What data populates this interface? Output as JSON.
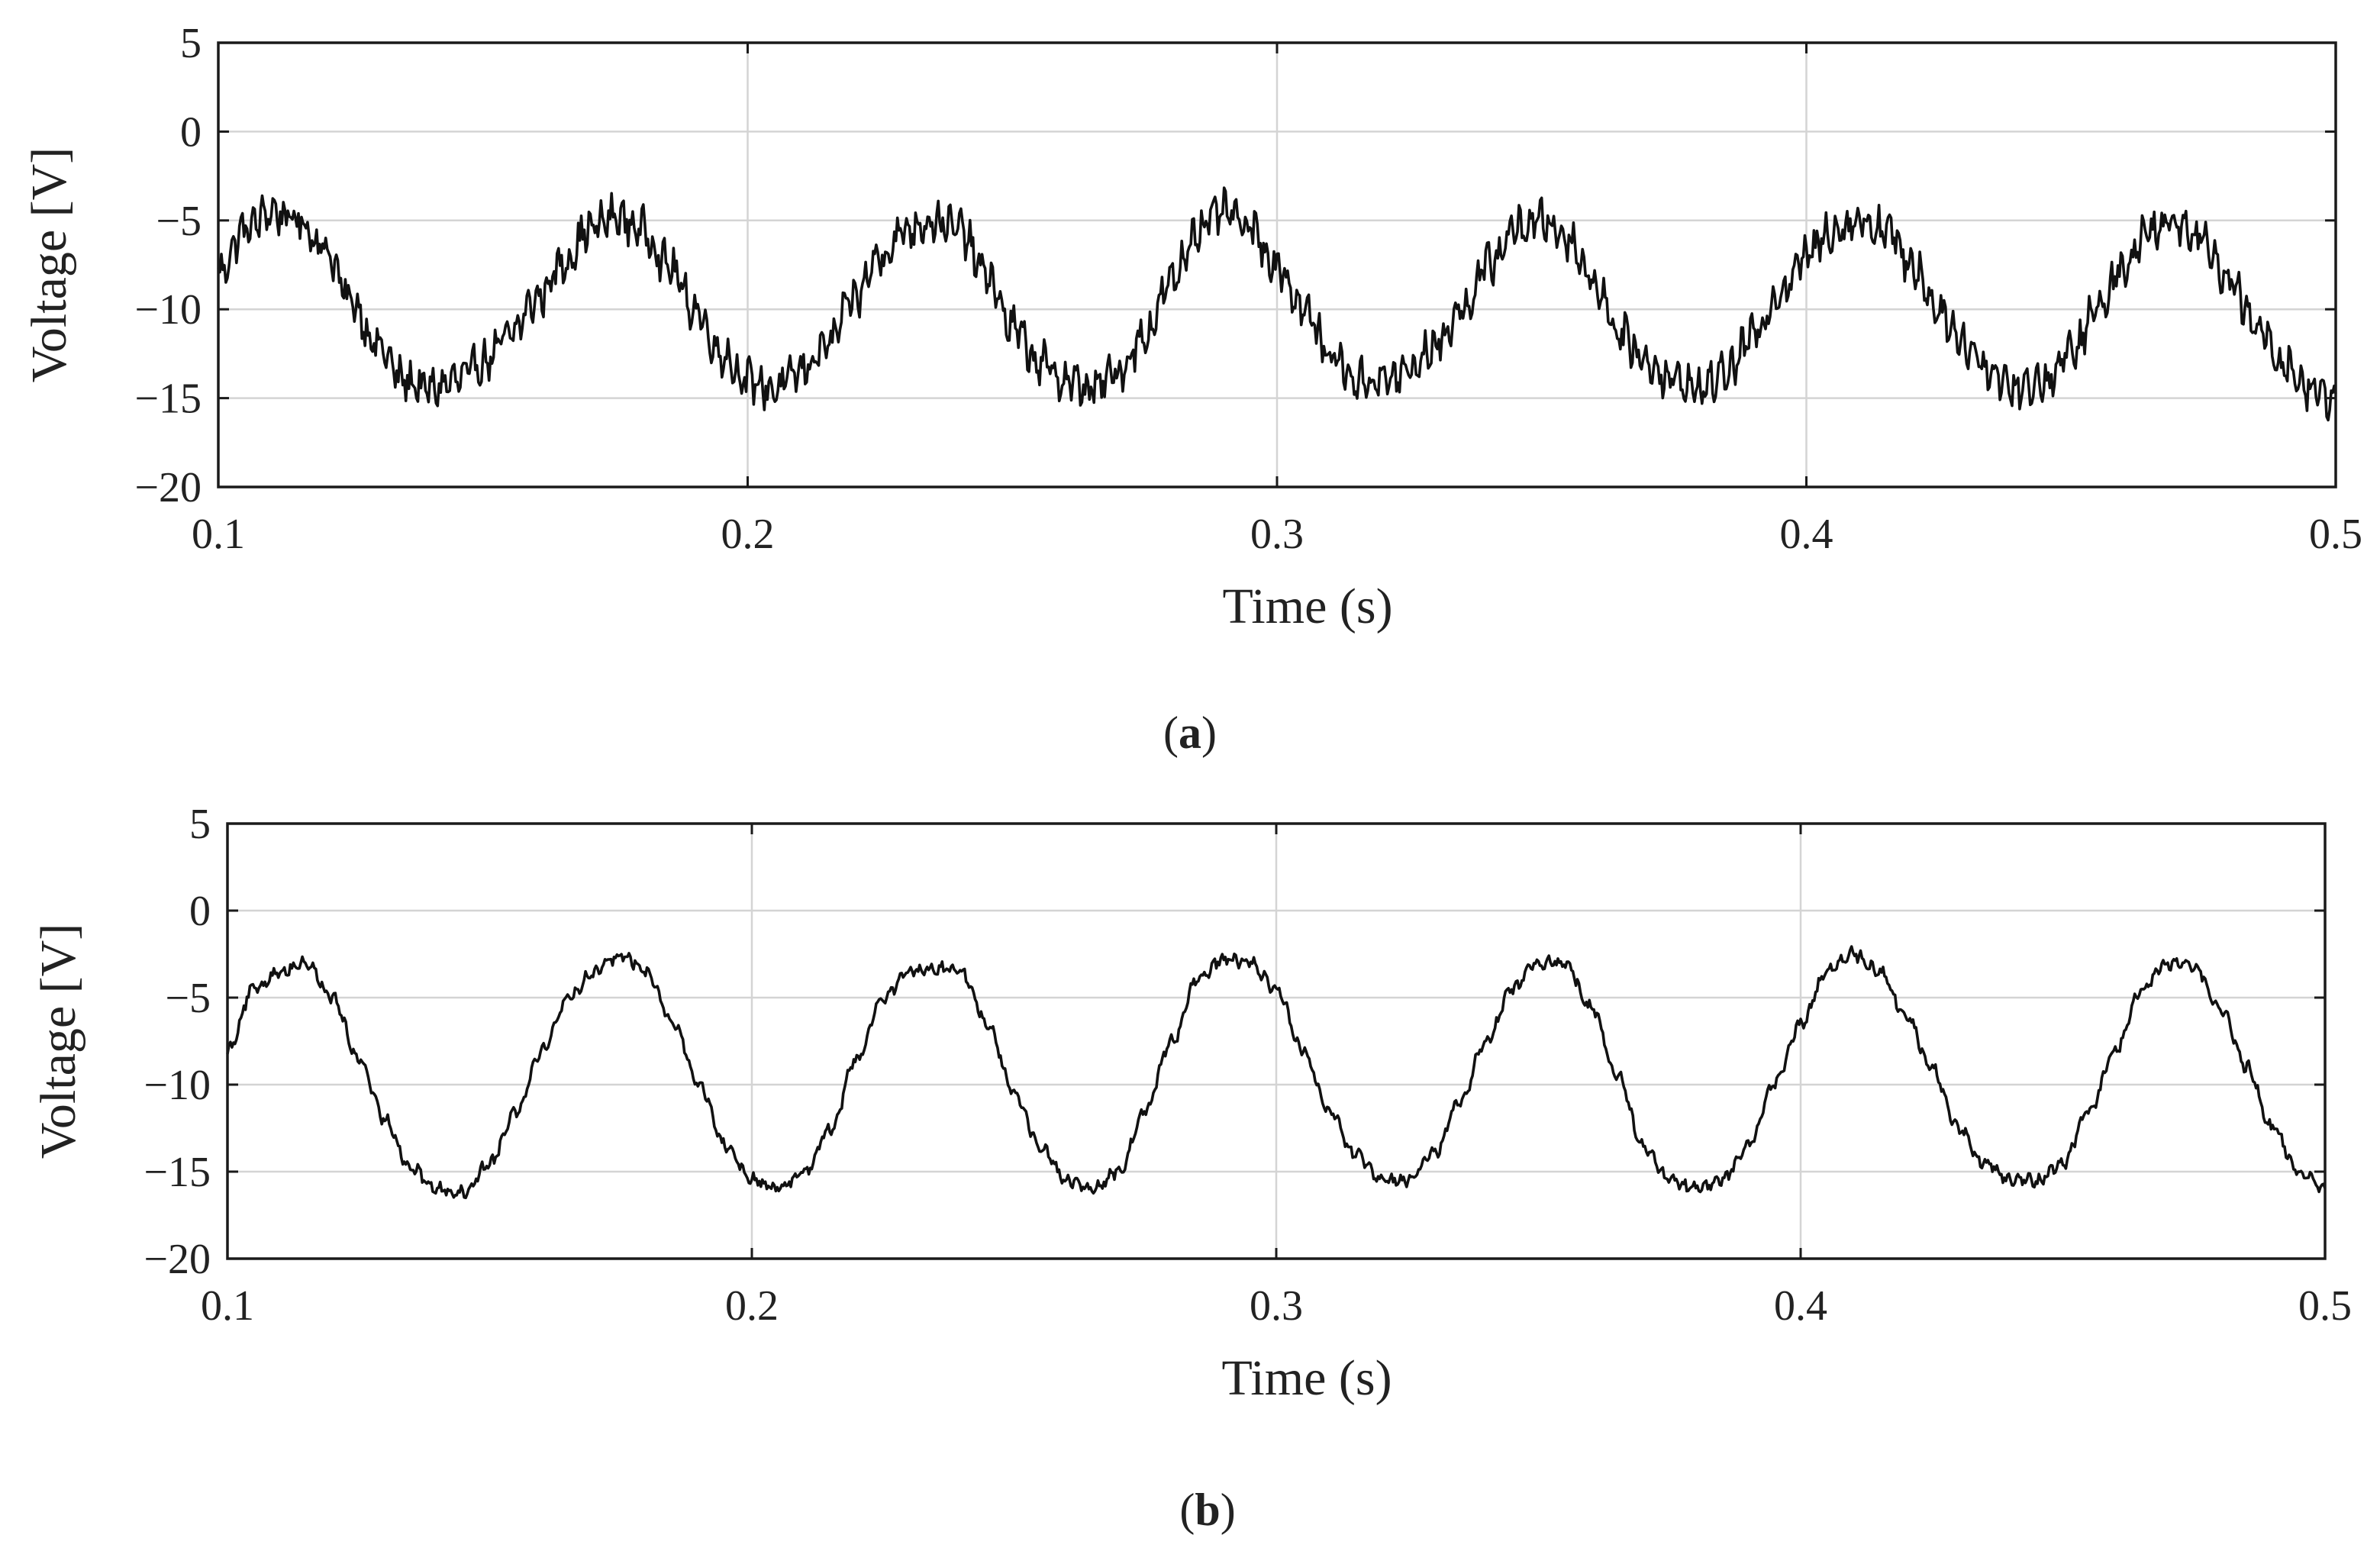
{
  "chart_data": [
    {
      "type": "line",
      "caption": "a",
      "xlabel": "Time (s)",
      "ylabel": "Voltage [V]",
      "xlim": [
        0.1,
        0.5
      ],
      "ylim": [
        -20,
        5
      ],
      "xticks": [
        0.1,
        0.2,
        0.3,
        0.4,
        0.5
      ],
      "xtick_labels": [
        "0.1",
        "0.2",
        "0.3",
        "0.4",
        "0.5"
      ],
      "yticks": [
        5,
        0,
        -5,
        -10,
        -15,
        -20
      ],
      "ytick_labels": [
        "5",
        "0",
        "−5",
        "−10",
        "−15",
        "−20"
      ],
      "grid": true,
      "color": "#111111",
      "series": [
        {
          "x": [
            0.1,
            0.105,
            0.11,
            0.115,
            0.12,
            0.125,
            0.13,
            0.135,
            0.14,
            0.145,
            0.15,
            0.155,
            0.16,
            0.165,
            0.17,
            0.175,
            0.18,
            0.185,
            0.19,
            0.195,
            0.2,
            0.205,
            0.21,
            0.215,
            0.22,
            0.225,
            0.23,
            0.235,
            0.24,
            0.245,
            0.25,
            0.255,
            0.26,
            0.265,
            0.27,
            0.275,
            0.28,
            0.285,
            0.29,
            0.295,
            0.3,
            0.305,
            0.31,
            0.315,
            0.32,
            0.325,
            0.33,
            0.335,
            0.34,
            0.345,
            0.35,
            0.355,
            0.36,
            0.365,
            0.37,
            0.375,
            0.38,
            0.385,
            0.39,
            0.395,
            0.4,
            0.405,
            0.41,
            0.415,
            0.42,
            0.425,
            0.43,
            0.435,
            0.44,
            0.445,
            0.45,
            0.455,
            0.46,
            0.465,
            0.47,
            0.475,
            0.48,
            0.485,
            0.49,
            0.495,
            0.5
          ],
          "values": [
            -8.0,
            -5.5,
            -4.5,
            -5.0,
            -6.5,
            -9.5,
            -12.0,
            -14.0,
            -14.5,
            -14.0,
            -13.0,
            -11.5,
            -9.5,
            -7.5,
            -5.5,
            -4.8,
            -5.5,
            -7.5,
            -10.0,
            -12.5,
            -14.0,
            -14.5,
            -13.5,
            -12.0,
            -9.5,
            -7.0,
            -5.5,
            -5.0,
            -5.5,
            -8.0,
            -11.0,
            -13.0,
            -14.0,
            -14.5,
            -13.5,
            -11.5,
            -8.5,
            -5.5,
            -4.5,
            -5.5,
            -7.5,
            -10.0,
            -12.5,
            -14.0,
            -14.0,
            -13.5,
            -12.0,
            -10.0,
            -7.5,
            -5.5,
            -5.0,
            -6.0,
            -8.5,
            -11.5,
            -13.0,
            -14.0,
            -14.5,
            -13.5,
            -11.5,
            -9.0,
            -7.0,
            -5.5,
            -5.0,
            -5.5,
            -7.5,
            -10.0,
            -12.0,
            -13.5,
            -14.5,
            -14.0,
            -12.5,
            -10.0,
            -7.5,
            -5.5,
            -5.0,
            -6.0,
            -8.5,
            -11.0,
            -13.0,
            -14.5,
            -15.0
          ],
          "ripple_amplitude": 1.1
        }
      ]
    },
    {
      "type": "line",
      "caption": "b",
      "xlabel": "Time (s)",
      "ylabel": "Voltage [V]",
      "xlim": [
        0.1,
        0.5
      ],
      "ylim": [
        -20,
        5
      ],
      "xticks": [
        0.1,
        0.2,
        0.3,
        0.4,
        0.5
      ],
      "xtick_labels": [
        "0.1",
        "0.2",
        "0.3",
        "0.4",
        "0.5"
      ],
      "yticks": [
        5,
        0,
        -5,
        -10,
        -15,
        -20
      ],
      "ytick_labels": [
        "5",
        "0",
        "−5",
        "−10",
        "−15",
        "−20"
      ],
      "grid": true,
      "color": "#111111",
      "series": [
        {
          "x": [
            0.1,
            0.105,
            0.11,
            0.115,
            0.12,
            0.125,
            0.13,
            0.135,
            0.14,
            0.145,
            0.15,
            0.155,
            0.16,
            0.165,
            0.17,
            0.175,
            0.18,
            0.185,
            0.19,
            0.195,
            0.2,
            0.205,
            0.21,
            0.215,
            0.22,
            0.225,
            0.23,
            0.235,
            0.24,
            0.245,
            0.25,
            0.255,
            0.26,
            0.265,
            0.27,
            0.275,
            0.28,
            0.285,
            0.29,
            0.295,
            0.3,
            0.305,
            0.31,
            0.315,
            0.32,
            0.325,
            0.33,
            0.335,
            0.34,
            0.345,
            0.35,
            0.355,
            0.36,
            0.365,
            0.37,
            0.375,
            0.38,
            0.385,
            0.39,
            0.395,
            0.4,
            0.405,
            0.41,
            0.415,
            0.42,
            0.425,
            0.43,
            0.435,
            0.44,
            0.445,
            0.45,
            0.455,
            0.46,
            0.465,
            0.47,
            0.475,
            0.48,
            0.485,
            0.49,
            0.495,
            0.5
          ],
          "values": [
            -8.0,
            -4.5,
            -3.5,
            -3.0,
            -5.0,
            -8.5,
            -12.0,
            -14.8,
            -16.0,
            -16.2,
            -14.5,
            -11.5,
            -8.0,
            -5.0,
            -3.5,
            -2.5,
            -3.5,
            -6.5,
            -10.0,
            -13.5,
            -15.5,
            -16.0,
            -15.0,
            -12.5,
            -8.5,
            -5.0,
            -3.5,
            -3.3,
            -3.5,
            -6.5,
            -10.5,
            -13.5,
            -15.5,
            -16.0,
            -15.0,
            -11.5,
            -7.5,
            -4.0,
            -2.8,
            -3.0,
            -4.5,
            -8.0,
            -11.5,
            -14.0,
            -15.5,
            -15.5,
            -14.0,
            -11.0,
            -7.5,
            -4.5,
            -3.0,
            -3.0,
            -5.5,
            -9.5,
            -13.5,
            -15.5,
            -16.0,
            -15.5,
            -13.5,
            -10.0,
            -6.5,
            -3.5,
            -2.5,
            -3.5,
            -6.0,
            -9.0,
            -12.5,
            -14.5,
            -15.5,
            -15.5,
            -14.5,
            -11.5,
            -8.0,
            -4.5,
            -3.0,
            -3.2,
            -5.5,
            -9.0,
            -12.5,
            -15.0,
            -16.0
          ],
          "ripple_amplitude": 0.35
        }
      ]
    }
  ]
}
